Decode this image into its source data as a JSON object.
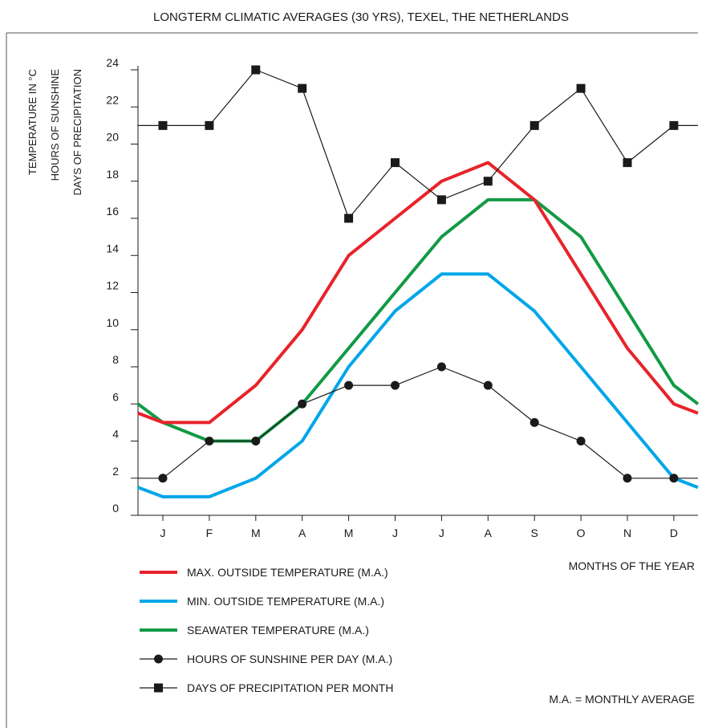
{
  "chart_data": {
    "type": "line",
    "title": "LONGTERM CLIMATIC AVERAGES (30 YRS), TEXEL, THE NETHERLANDS",
    "ylabels": [
      "TEMPERATURE IN °C",
      "HOURS OF SUNSHINE",
      "DAYS OF PRECIPITATION"
    ],
    "xlabel": "MONTHS OF THE YEAR",
    "categories": [
      "J",
      "F",
      "M",
      "A",
      "M",
      "J",
      "J",
      "A",
      "S",
      "O",
      "N",
      "D"
    ],
    "yticks": [
      "0",
      "2",
      "4",
      "6",
      "8",
      "10",
      "12",
      "14",
      "16",
      "18",
      "20",
      "22",
      "24"
    ],
    "ylim": [
      0,
      24
    ],
    "grid": false,
    "legend_position": "bottom",
    "series": [
      {
        "name": "MAX. OUTSIDE TEMPERATURE (M.A.)",
        "color": "#e8232a",
        "marker": "none",
        "values": [
          5,
          5,
          7,
          10,
          14,
          16,
          18,
          19,
          17,
          13,
          9,
          6
        ],
        "edge_start": 5.5,
        "edge_end": 5.5
      },
      {
        "name": "MIN. OUTSIDE TEMPERATURE (M.A.)",
        "color": "#00a6e8",
        "marker": "none",
        "values": [
          1,
          1,
          2,
          4,
          8,
          11,
          13,
          13,
          11,
          8,
          5,
          2
        ],
        "edge_start": 1.5,
        "edge_end": 1.5
      },
      {
        "name": "SEAWATER TEMPERATURE (M.A.)",
        "color": "#129a45",
        "marker": "none",
        "values": [
          5,
          4,
          4,
          6,
          9,
          12,
          15,
          17,
          17,
          15,
          11,
          7
        ],
        "edge_start": 6,
        "edge_end": 6
      },
      {
        "name": "HOURS OF SUNSHINE PER DAY (M.A.)",
        "color": "#1a1a1a",
        "marker": "circle",
        "values": [
          2,
          4,
          4,
          6,
          7,
          7,
          8,
          7,
          5,
          4,
          2,
          2
        ],
        "edge_start": 2,
        "edge_end": 2
      },
      {
        "name": "DAYS OF PRECIPITATION PER MONTH",
        "color": "#1a1a1a",
        "marker": "square",
        "values": [
          21,
          21,
          24,
          23,
          16,
          19,
          17,
          18,
          21,
          23,
          19,
          21
        ],
        "edge_start": 21,
        "edge_end": 21
      }
    ],
    "note": "M.A. = MONTHLY AVERAGE"
  }
}
